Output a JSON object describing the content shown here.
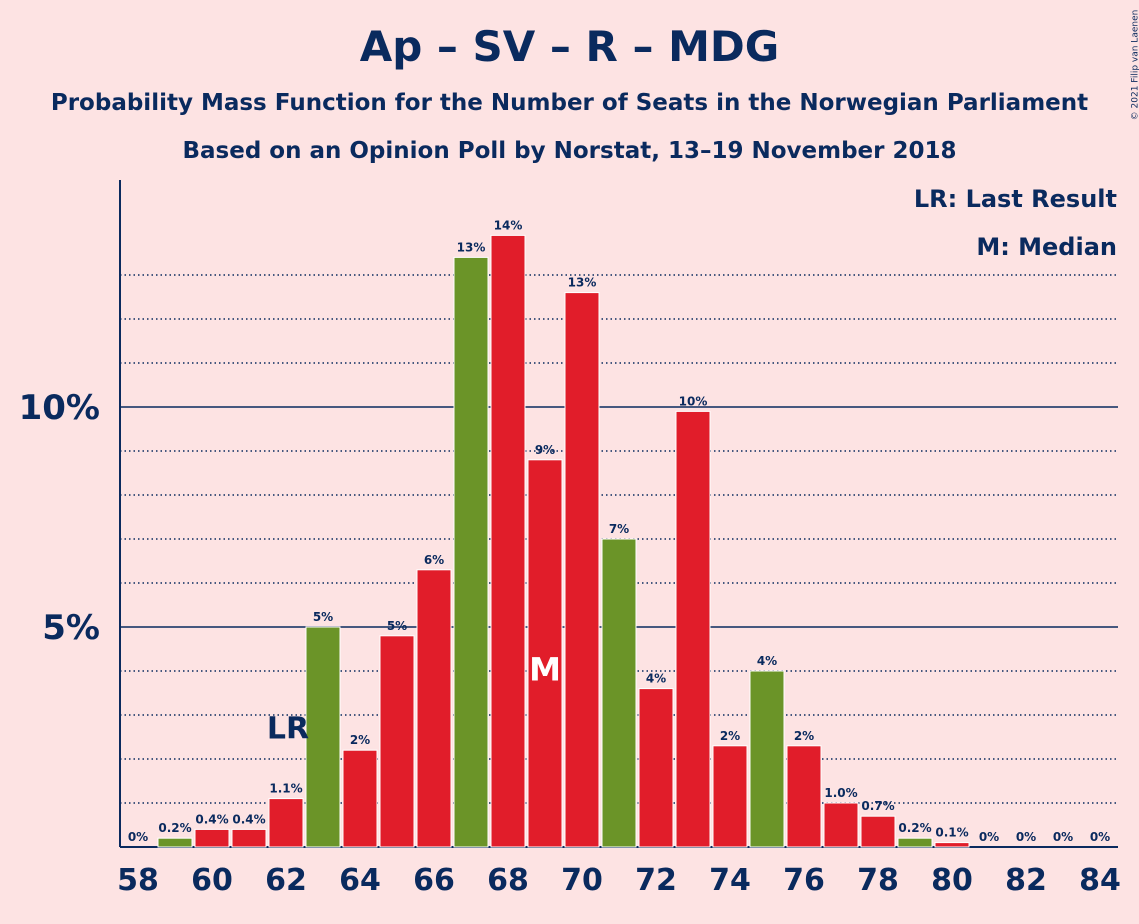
{
  "chart_data": {
    "type": "bar",
    "title": "Ap – SV – R – MDG",
    "subtitle": "Probability Mass Function for the Number of Seats in the Norwegian Parliament",
    "subtitle2": "Based on an Opinion Poll by Norstat, 13–19 November 2018",
    "legend": [
      "LR: Last Result",
      "M: Median"
    ],
    "copyright": "© 2021 Filip van Laenen",
    "categories": [
      58,
      59,
      60,
      61,
      62,
      63,
      64,
      65,
      66,
      67,
      68,
      69,
      70,
      71,
      72,
      73,
      74,
      75,
      76,
      77,
      78,
      79,
      80,
      81,
      82,
      83,
      84
    ],
    "values": [
      0,
      0.2,
      0.4,
      0.4,
      1.1,
      5.0,
      2.2,
      4.8,
      6.3,
      13.4,
      13.9,
      8.8,
      12.6,
      7.0,
      3.6,
      9.9,
      2.3,
      4.0,
      2.3,
      1.0,
      0.7,
      0.2,
      0.1,
      0,
      0,
      0,
      0
    ],
    "labels": [
      "0%",
      "0.2%",
      "0.4%",
      "0.4%",
      "1.1%",
      "5%",
      "2%",
      "5%",
      "6%",
      "13%",
      "14%",
      "9%",
      "13%",
      "7%",
      "4%",
      "10%",
      "2%",
      "4%",
      "2%",
      "1.0%",
      "0.7%",
      "0.2%",
      "0.1%",
      "0%",
      "0%",
      "0%",
      "0%"
    ],
    "colors": [
      "#e11d2a",
      "#6b9428",
      "#e11d2a",
      "#e11d2a",
      "#e11d2a",
      "#6b9428",
      "#e11d2a",
      "#e11d2a",
      "#e11d2a",
      "#6b9428",
      "#e11d2a",
      "#e11d2a",
      "#e11d2a",
      "#6b9428",
      "#e11d2a",
      "#e11d2a",
      "#e11d2a",
      "#6b9428",
      "#e11d2a",
      "#e11d2a",
      "#e11d2a",
      "#6b9428",
      "#e11d2a",
      "#e11d2a",
      "#e11d2a",
      "#e11d2a",
      "#e11d2a"
    ],
    "x_tick_labels": [
      "58",
      "60",
      "62",
      "64",
      "66",
      "68",
      "70",
      "72",
      "74",
      "76",
      "78",
      "80",
      "82",
      "84"
    ],
    "y_tick_labels": [
      {
        "value": 5,
        "label": "5%"
      },
      {
        "value": 10,
        "label": "10%"
      }
    ],
    "ylim": [
      0,
      15
    ],
    "last_result": {
      "seat": 62,
      "marker": "LR"
    },
    "median": {
      "seat": 69,
      "marker": "M"
    },
    "grid": true
  }
}
